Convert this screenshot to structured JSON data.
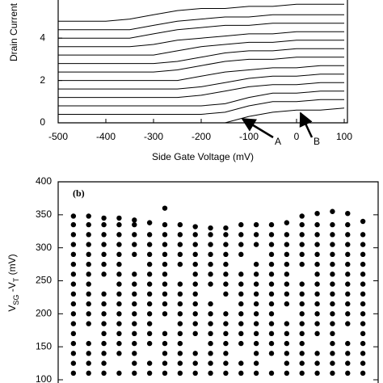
{
  "chart_data": [
    {
      "type": "line",
      "ylabel": "Drain Current",
      "xlabel": "Side Gate Voltage (mV)",
      "annotations": [
        "A",
        "B"
      ],
      "xlim": [
        -500,
        100
      ],
      "xticks": [
        -500,
        -400,
        -300,
        -200,
        -100,
        0,
        100
      ],
      "ylim": [
        0,
        5.8
      ],
      "yticks": [
        0,
        2,
        4
      ],
      "color": "#000000",
      "x": [
        -500,
        -450,
        -400,
        -350,
        -300,
        -250,
        -200,
        -150,
        -100,
        -50,
        0,
        50,
        100
      ],
      "series": [
        {
          "values": [
            0,
            0,
            0,
            0,
            0,
            0,
            0,
            0,
            0.3,
            0.5,
            0.6,
            0.6,
            0.7
          ]
        },
        {
          "values": [
            0.4,
            0.4,
            0.4,
            0.4,
            0.4,
            0.4,
            0.4,
            0.5,
            0.8,
            1.0,
            1.0,
            1.1,
            1.1
          ]
        },
        {
          "values": [
            0.8,
            0.8,
            0.8,
            0.8,
            0.8,
            0.8,
            0.8,
            0.9,
            1.2,
            1.4,
            1.4,
            1.5,
            1.5
          ]
        },
        {
          "values": [
            1.2,
            1.2,
            1.2,
            1.2,
            1.2,
            1.2,
            1.3,
            1.5,
            1.7,
            1.8,
            1.8,
            1.9,
            1.9
          ]
        },
        {
          "values": [
            1.6,
            1.6,
            1.6,
            1.6,
            1.6,
            1.6,
            1.7,
            1.9,
            2.1,
            2.2,
            2.2,
            2.3,
            2.3
          ]
        },
        {
          "values": [
            2.0,
            2.0,
            2.0,
            2.0,
            2.0,
            2.0,
            2.2,
            2.4,
            2.5,
            2.6,
            2.6,
            2.7,
            2.7
          ]
        },
        {
          "values": [
            2.4,
            2.4,
            2.4,
            2.4,
            2.4,
            2.5,
            2.7,
            2.9,
            3.0,
            3.0,
            3.1,
            3.1,
            3.1
          ]
        },
        {
          "values": [
            2.8,
            2.8,
            2.8,
            2.8,
            2.8,
            2.9,
            3.1,
            3.3,
            3.4,
            3.4,
            3.5,
            3.5,
            3.5
          ]
        },
        {
          "values": [
            3.2,
            3.2,
            3.2,
            3.2,
            3.2,
            3.4,
            3.6,
            3.7,
            3.8,
            3.8,
            3.9,
            3.9,
            3.9
          ]
        },
        {
          "values": [
            3.6,
            3.6,
            3.6,
            3.6,
            3.7,
            3.9,
            4.0,
            4.1,
            4.2,
            4.2,
            4.3,
            4.3,
            4.3
          ]
        },
        {
          "values": [
            4.0,
            4.0,
            4.0,
            4.0,
            4.2,
            4.4,
            4.5,
            4.6,
            4.6,
            4.7,
            4.7,
            4.7,
            4.7
          ]
        },
        {
          "values": [
            4.4,
            4.4,
            4.4,
            4.4,
            4.6,
            4.8,
            4.9,
            5.0,
            5.0,
            5.1,
            5.1,
            5.1,
            5.1
          ]
        },
        {
          "values": [
            4.8,
            4.8,
            4.8,
            4.9,
            5.1,
            5.3,
            5.4,
            5.4,
            5.5,
            5.5,
            5.6,
            5.6,
            5.6
          ]
        }
      ]
    },
    {
      "type": "scatter",
      "panel_label": "(b)",
      "ylabel": [
        "V",
        "SG",
        " -V",
        "T",
        " (mV)"
      ],
      "xlim": [
        0,
        21
      ],
      "ylim": [
        100,
        400
      ],
      "yticks": [
        100,
        150,
        200,
        250,
        300,
        350,
        400
      ],
      "color": "#000000",
      "series": [
        {
          "x": 1,
          "values": [
            110,
            125,
            140,
            155,
            170,
            185,
            200,
            215,
            230,
            245,
            260,
            275,
            290,
            305,
            320,
            335,
            348
          ]
        },
        {
          "x": 2,
          "values": [
            110,
            125,
            140,
            155,
            185,
            200,
            215,
            230,
            245,
            260,
            275,
            290,
            305,
            320,
            335,
            348
          ]
        },
        {
          "x": 3,
          "values": [
            110,
            125,
            140,
            155,
            170,
            185,
            200,
            215,
            230,
            260,
            275,
            290,
            305,
            320,
            335,
            345
          ]
        },
        {
          "x": 4,
          "values": [
            110,
            140,
            155,
            170,
            185,
            200,
            215,
            230,
            245,
            260,
            275,
            290,
            305,
            320,
            335,
            345
          ]
        },
        {
          "x": 5,
          "values": [
            110,
            125,
            140,
            155,
            170,
            185,
            200,
            215,
            230,
            245,
            260,
            290,
            305,
            320,
            335,
            342
          ]
        },
        {
          "x": 6,
          "values": [
            110,
            125,
            155,
            170,
            185,
            200,
            215,
            230,
            245,
            260,
            275,
            290,
            305,
            320,
            338
          ]
        },
        {
          "x": 7,
          "values": [
            110,
            125,
            140,
            155,
            170,
            200,
            215,
            230,
            245,
            260,
            275,
            290,
            305,
            320,
            335,
            360
          ]
        },
        {
          "x": 8,
          "values": [
            110,
            125,
            140,
            155,
            170,
            185,
            200,
            215,
            230,
            245,
            275,
            290,
            305,
            320,
            335
          ]
        },
        {
          "x": 9,
          "values": [
            110,
            125,
            140,
            170,
            185,
            200,
            215,
            230,
            245,
            260,
            275,
            290,
            305,
            320,
            332
          ]
        },
        {
          "x": 10,
          "values": [
            110,
            125,
            140,
            155,
            170,
            185,
            200,
            215,
            245,
            260,
            275,
            290,
            305,
            320,
            330
          ]
        },
        {
          "x": 11,
          "values": [
            110,
            125,
            140,
            155,
            170,
            185,
            200,
            230,
            245,
            260,
            275,
            290,
            305,
            320,
            330
          ]
        },
        {
          "x": 12,
          "values": [
            110,
            125,
            155,
            170,
            185,
            200,
            215,
            230,
            245,
            260,
            290,
            305,
            320,
            335
          ]
        },
        {
          "x": 13,
          "values": [
            110,
            125,
            140,
            155,
            170,
            185,
            200,
            215,
            230,
            245,
            260,
            275,
            305,
            320,
            335
          ]
        },
        {
          "x": 14,
          "values": [
            110,
            140,
            155,
            170,
            185,
            200,
            215,
            230,
            245,
            260,
            275,
            290,
            305,
            320,
            335
          ]
        },
        {
          "x": 15,
          "values": [
            110,
            125,
            140,
            155,
            170,
            185,
            215,
            230,
            245,
            260,
            275,
            290,
            305,
            320,
            338
          ]
        },
        {
          "x": 16,
          "values": [
            110,
            125,
            140,
            155,
            170,
            185,
            200,
            215,
            230,
            245,
            275,
            290,
            305,
            320,
            335,
            348
          ]
        },
        {
          "x": 17,
          "values": [
            110,
            125,
            140,
            170,
            185,
            200,
            215,
            230,
            245,
            260,
            275,
            290,
            305,
            320,
            335,
            352
          ]
        },
        {
          "x": 18,
          "values": [
            110,
            125,
            140,
            155,
            170,
            185,
            200,
            215,
            230,
            245,
            260,
            275,
            290,
            305,
            320,
            335,
            355
          ]
        },
        {
          "x": 19,
          "values": [
            110,
            125,
            140,
            155,
            185,
            200,
            215,
            230,
            245,
            260,
            275,
            290,
            305,
            320,
            335,
            352
          ]
        },
        {
          "x": 20,
          "values": [
            110,
            125,
            140,
            155,
            170,
            185,
            200,
            215,
            230,
            245,
            260,
            275,
            290,
            305,
            320,
            340
          ]
        }
      ]
    }
  ]
}
